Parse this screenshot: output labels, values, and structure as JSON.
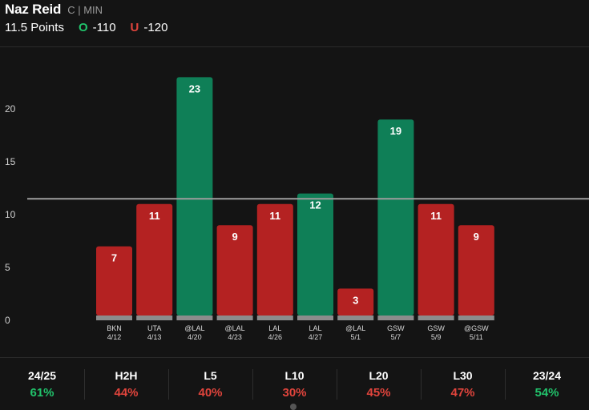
{
  "player": {
    "name": "Naz Reid",
    "positions": "C | MIN"
  },
  "line": {
    "text": "11.5 Points",
    "over_label": "O",
    "over_odds": "-110",
    "under_label": "U",
    "under_odds": "-120"
  },
  "colors": {
    "over": "#0f7f57",
    "under": "#b42222",
    "line": "#9e9e9e",
    "positive": "#21c26b",
    "negative": "#e0443c"
  },
  "chart_data": {
    "type": "bar",
    "categories": [
      "BKN 4/12",
      "UTA 4/13",
      "@LAL 4/20",
      "@LAL 4/23",
      "LAL 4/26",
      "LAL 4/27",
      "@LAL 5/1",
      "GSW 5/7",
      "GSW 5/9",
      "@GSW 5/11"
    ],
    "opponents": [
      "BKN",
      "UTA",
      "@LAL",
      "@LAL",
      "LAL",
      "LAL",
      "@LAL",
      "GSW",
      "GSW",
      "@GSW"
    ],
    "dates": [
      "4/12",
      "4/13",
      "4/20",
      "4/23",
      "4/26",
      "4/27",
      "5/1",
      "5/7",
      "5/9",
      "5/11"
    ],
    "values": [
      7,
      11,
      23,
      9,
      11,
      12,
      3,
      19,
      11,
      9
    ],
    "threshold": 11.5,
    "ylim": [
      0,
      25
    ],
    "yticks": [
      0,
      5,
      10,
      15,
      20
    ],
    "grid": false
  },
  "stats": [
    {
      "label": "24/25",
      "value": "61%",
      "positive": true
    },
    {
      "label": "H2H",
      "value": "44%",
      "positive": false
    },
    {
      "label": "L5",
      "value": "40%",
      "positive": false
    },
    {
      "label": "L10",
      "value": "30%",
      "positive": false
    },
    {
      "label": "L20",
      "value": "45%",
      "positive": false
    },
    {
      "label": "L30",
      "value": "47%",
      "positive": false
    },
    {
      "label": "23/24",
      "value": "54%",
      "positive": true
    }
  ]
}
